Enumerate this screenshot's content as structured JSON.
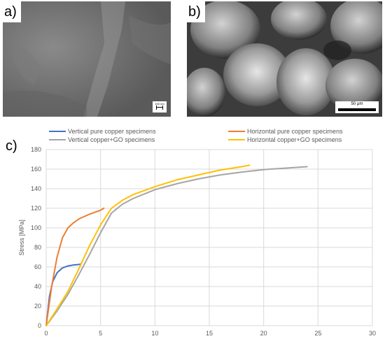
{
  "panels": {
    "a": {
      "label": "a)",
      "scalebar": "100 nm"
    },
    "b": {
      "label": "b)",
      "scalebar": "50 μm"
    },
    "c": {
      "label": "c)"
    }
  },
  "colors": {
    "vertical_pure": "#4472C4",
    "horizontal_pure": "#ED7D31",
    "vertical_go": "#A5A5A5",
    "horizontal_go": "#FFC000",
    "grid": "#d9d9d9"
  },
  "chart_data": {
    "type": "line",
    "title": "",
    "xlabel": "",
    "ylabel": "Stress [MPa]",
    "xlim": [
      0,
      30
    ],
    "ylim": [
      0,
      180
    ],
    "xticks": [
      0,
      5,
      10,
      15,
      20,
      25,
      30
    ],
    "yticks": [
      0,
      20,
      40,
      60,
      80,
      100,
      120,
      140,
      160,
      180
    ],
    "grid": true,
    "legend_position": "top",
    "series": [
      {
        "name": "Vertical pure copper specimens",
        "color_key": "vertical_pure",
        "points": [
          [
            0,
            0
          ],
          [
            0.3,
            30
          ],
          [
            0.6,
            45
          ],
          [
            1,
            54
          ],
          [
            1.5,
            59
          ],
          [
            2,
            61
          ],
          [
            2.5,
            62
          ],
          [
            3,
            62.5
          ],
          [
            3.2,
            63
          ]
        ]
      },
      {
        "name": "Horizontal pure copper specimens",
        "color_key": "horizontal_pure",
        "points": [
          [
            0,
            0
          ],
          [
            0.5,
            40
          ],
          [
            1,
            70
          ],
          [
            1.5,
            90
          ],
          [
            2,
            100
          ],
          [
            2.5,
            105
          ],
          [
            3,
            109
          ],
          [
            4,
            114
          ],
          [
            5,
            118
          ],
          [
            5.3,
            120
          ]
        ]
      },
      {
        "name": "Vertical copper+GO specimens",
        "color_key": "vertical_go",
        "points": [
          [
            0,
            0
          ],
          [
            1,
            15
          ],
          [
            2,
            32
          ],
          [
            3,
            52
          ],
          [
            4,
            73
          ],
          [
            5,
            95
          ],
          [
            6,
            115
          ],
          [
            7,
            124
          ],
          [
            8,
            130
          ],
          [
            10,
            139
          ],
          [
            12,
            145
          ],
          [
            14,
            150
          ],
          [
            16,
            154
          ],
          [
            18,
            157
          ],
          [
            20,
            159.5
          ],
          [
            22,
            161
          ],
          [
            24,
            162.5
          ]
        ]
      },
      {
        "name": "Horizontal copper+GO specimens",
        "color_key": "horizontal_go",
        "points": [
          [
            0,
            0
          ],
          [
            1,
            17
          ],
          [
            2,
            35
          ],
          [
            3,
            58
          ],
          [
            4,
            82
          ],
          [
            5,
            103
          ],
          [
            6,
            120
          ],
          [
            7,
            128
          ],
          [
            8,
            134
          ],
          [
            10,
            142
          ],
          [
            12,
            149
          ],
          [
            14,
            154
          ],
          [
            16,
            159
          ],
          [
            18,
            162.5
          ],
          [
            18.7,
            164
          ]
        ]
      }
    ]
  }
}
